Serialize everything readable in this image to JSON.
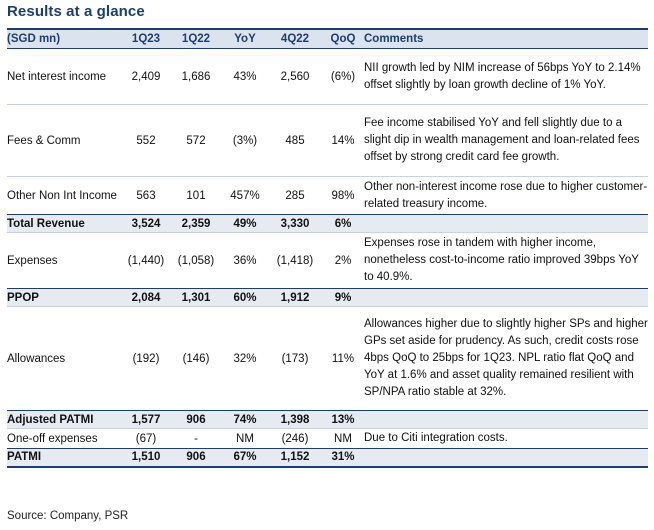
{
  "title": "Results at a glance",
  "headers": [
    "(SGD mn)",
    "1Q23",
    "1Q22",
    "YoY",
    "4Q22",
    "QoQ",
    "Comments"
  ],
  "rows": [
    {
      "label": "Net interest income",
      "q1_23": "2,409",
      "q1_22": "1,686",
      "yoy": "43%",
      "q4_22": "2,560",
      "qoq": "(6%)",
      "comment": "NII growth led by NIM increase of 56bps YoY to 2.14% offset slightly by loan growth decline of 1% YoY.",
      "bold": false
    },
    {
      "label": "Fees & Comm",
      "q1_23": "552",
      "q1_22": "572",
      "yoy": "(3%)",
      "q4_22": "485",
      "qoq": "14%",
      "comment": "Fee income stabilised YoY and fell slightly due to a slight dip in wealth management and loan-related fees offset by strong credit card fee growth.",
      "bold": false
    },
    {
      "label": "Other Non Int Income",
      "q1_23": "563",
      "q1_22": "101",
      "yoy": "457%",
      "q4_22": "285",
      "qoq": "98%",
      "comment": "Other non-interest income rose due to higher customer-related treasury income.",
      "bold": false
    },
    {
      "label": "Total Revenue",
      "q1_23": "3,524",
      "q1_22": "2,359",
      "yoy": "49%",
      "q4_22": "3,330",
      "qoq": "6%",
      "comment": "",
      "bold": true
    },
    {
      "label": "Expenses",
      "q1_23": "(1,440)",
      "q1_22": "(1,058)",
      "yoy": "36%",
      "q4_22": "(1,418)",
      "qoq": "2%",
      "comment": "Expenses rose in tandem with higher income, nonetheless cost-to-income ratio improved 39bps YoY to 40.9%.",
      "bold": false
    },
    {
      "label": "PPOP",
      "q1_23": "2,084",
      "q1_22": "1,301",
      "yoy": "60%",
      "q4_22": "1,912",
      "qoq": "9%",
      "comment": "",
      "bold": true
    },
    {
      "label": "Allowances",
      "q1_23": "(192)",
      "q1_22": "(146)",
      "yoy": "32%",
      "q4_22": "(173)",
      "qoq": "11%",
      "comment": "Allowances higher due to slightly higher SPs and higher GPs set aside for prudency. As such, credit costs rose 4bps QoQ to 25bps for 1Q23. NPL ratio flat QoQ and YoY at 1.6% and asset quality remained resilient with SP/NPA ratio stable at 32%.",
      "bold": false
    },
    {
      "label": "Adjusted PATMI",
      "q1_23": "1,577",
      "q1_22": "906",
      "yoy": "74%",
      "q4_22": "1,398",
      "qoq": "13%",
      "comment": "",
      "bold": true
    },
    {
      "label": "One-off expenses",
      "q1_23": "(67)",
      "q1_22": "-",
      "yoy": "NM",
      "q4_22": "(246)",
      "qoq": "NM",
      "comment": "Due to Citi integration costs.",
      "bold": false
    },
    {
      "label": "PATMI",
      "q1_23": "1,510",
      "q1_22": "906",
      "yoy": "67%",
      "q4_22": "1,152",
      "qoq": "31%",
      "comment": "",
      "bold": true
    }
  ],
  "source": "Source: Company, PSR"
}
